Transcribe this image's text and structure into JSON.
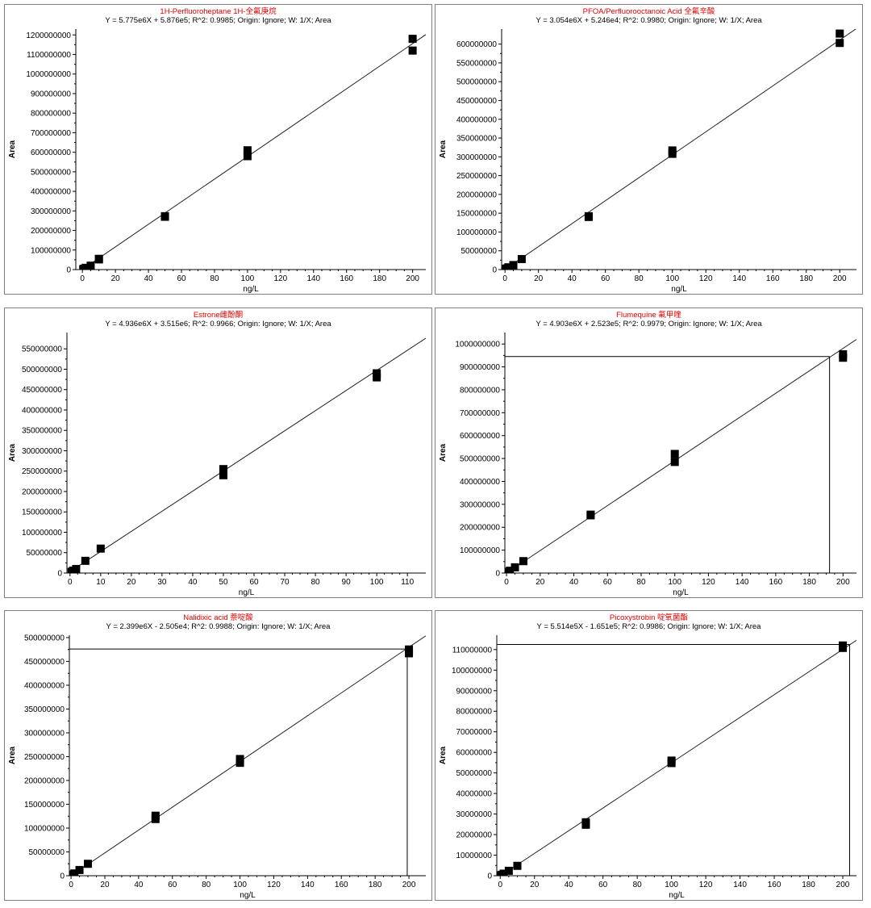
{
  "chart_data": [
    {
      "type": "scatter",
      "title": "1H-Perfluoroheptane 1H-全氟庚烷",
      "equation": "Y = 5.775e6X + 5.876e5; R^2: 0.9985; Origin: Ignore; W: 1/X; Area",
      "xlabel": "ng/L",
      "ylabel": "Area",
      "xlim": [
        -4,
        208
      ],
      "ylim": [
        0,
        1230000000
      ],
      "xticks": [
        0,
        20,
        40,
        60,
        80,
        100,
        120,
        140,
        160,
        180,
        200
      ],
      "yticks": [
        0,
        100000000,
        200000000,
        300000000,
        400000000,
        500000000,
        600000000,
        700000000,
        800000000,
        900000000,
        1000000000,
        1100000000,
        1200000000
      ],
      "yticklabels": [
        "0",
        "100000000",
        "200000000",
        "300000000",
        "400000000",
        "500000000",
        "600000000",
        "700000000",
        "800000000",
        "900000000",
        "1000000000",
        "1100000000",
        "1200000000"
      ],
      "fit": {
        "slope": 5775000,
        "intercept": 587600
      },
      "points": [
        [
          0.5,
          2000000
        ],
        [
          1,
          4500000
        ],
        [
          2,
          9000000
        ],
        [
          5,
          20000000
        ],
        [
          10,
          55000000
        ],
        [
          10,
          52000000
        ],
        [
          50,
          273000000
        ],
        [
          50,
          270000000
        ],
        [
          100,
          610000000
        ],
        [
          100,
          580000000
        ],
        [
          200,
          1180000000
        ],
        [
          200,
          1120000000
        ]
      ]
    },
    {
      "type": "scatter",
      "title": "PFOA/Perfluorooctanoic Acid 全氟辛酸",
      "equation": "Y = 3.054e6X + 5.246e4; R^2: 0.9980; Origin: Ignore; W: 1/X; Area",
      "xlabel": "ng/L",
      "ylabel": "Area",
      "xlim": [
        -2,
        210
      ],
      "ylim": [
        0,
        640000000
      ],
      "xticks": [
        0,
        20,
        40,
        60,
        80,
        100,
        120,
        140,
        160,
        180,
        200
      ],
      "yticks": [
        0,
        50000000,
        100000000,
        150000000,
        200000000,
        250000000,
        300000000,
        350000000,
        400000000,
        450000000,
        500000000,
        550000000,
        600000000
      ],
      "yticklabels": [
        "0",
        "50000000",
        "100000000",
        "150000000",
        "200000000",
        "250000000",
        "300000000",
        "350000000",
        "400000000",
        "450000000",
        "500000000",
        "550000000",
        "600000000"
      ],
      "fit": {
        "slope": 3054000,
        "intercept": 52460
      },
      "points": [
        [
          0.5,
          1500000
        ],
        [
          1,
          3000000
        ],
        [
          2,
          6000000
        ],
        [
          5,
          12000000
        ],
        [
          10,
          28000000
        ],
        [
          50,
          142000000
        ],
        [
          50,
          140000000
        ],
        [
          100,
          317000000
        ],
        [
          100,
          308000000
        ],
        [
          200,
          628000000
        ],
        [
          200,
          603000000
        ]
      ]
    },
    {
      "type": "scatter",
      "title": "Estrone雌酚酮",
      "equation": "Y = 4.936e6X + 3.515e6; R^2: 0.9966; Origin: Ignore; W: 1/X; Area",
      "xlabel": "ng/L",
      "ylabel": "Area",
      "xlim": [
        -1,
        116
      ],
      "ylim": [
        0,
        590000000
      ],
      "xticks": [
        0,
        10,
        20,
        30,
        40,
        50,
        60,
        70,
        80,
        90,
        100,
        110
      ],
      "yticks": [
        0,
        50000000,
        100000000,
        150000000,
        200000000,
        250000000,
        300000000,
        350000000,
        400000000,
        450000000,
        500000000,
        550000000
      ],
      "yticklabels": [
        "0",
        "50000000",
        "100000000",
        "150000000",
        "200000000",
        "250000000",
        "300000000",
        "350000000",
        "400000000",
        "450000000",
        "500000000",
        "550000000"
      ],
      "fit": {
        "slope": 4936000,
        "intercept": 3515000
      },
      "points": [
        [
          0.5,
          3000000
        ],
        [
          1,
          6000000
        ],
        [
          2,
          10000000
        ],
        [
          5,
          30000000
        ],
        [
          10,
          60000000
        ],
        [
          50,
          255000000
        ],
        [
          50,
          240000000
        ],
        [
          100,
          490000000
        ],
        [
          100,
          480000000
        ]
      ]
    },
    {
      "type": "scatter",
      "title": "Flumequine 氟甲喹",
      "equation": "Y = 4.903e6X + 2.523e5; R^2: 0.9979; Origin: Ignore; W: 1/X; Area",
      "xlabel": "ng/L",
      "ylabel": "Area",
      "xlim": [
        -1,
        208
      ],
      "ylim": [
        0,
        1050000000
      ],
      "xticks": [
        0,
        20,
        40,
        60,
        80,
        100,
        120,
        140,
        160,
        180,
        200
      ],
      "yticks": [
        0,
        100000000,
        200000000,
        300000000,
        400000000,
        500000000,
        600000000,
        700000000,
        800000000,
        900000000,
        1000000000
      ],
      "yticklabels": [
        "0",
        "100000000",
        "200000000",
        "300000000",
        "400000000",
        "500000000",
        "600000000",
        "700000000",
        "800000000",
        "900000000",
        "1000000000"
      ],
      "fit": {
        "slope": 4903000,
        "intercept": 252300
      },
      "points": [
        [
          0.5,
          2500000
        ],
        [
          1,
          5000000
        ],
        [
          2,
          10000000
        ],
        [
          5,
          25000000
        ],
        [
          10,
          52000000
        ],
        [
          50,
          255000000
        ],
        [
          50,
          252000000
        ],
        [
          100,
          520000000
        ],
        [
          100,
          485000000
        ],
        [
          200,
          955000000
        ],
        [
          200,
          940000000
        ]
      ],
      "crosshair": {
        "x": 192,
        "y": 945000000
      }
    },
    {
      "type": "scatter",
      "title": "Nalidixic acid 萘啶酸",
      "equation": "Y = 2.399e6X - 2.505e4; R^2: 0.9988; Origin: Ignore; W: 1/X; Area",
      "xlabel": "ng/L",
      "ylabel": "Area",
      "xlim": [
        -1,
        210
      ],
      "ylim": [
        0,
        505000000
      ],
      "xticks": [
        0,
        20,
        40,
        60,
        80,
        100,
        120,
        140,
        160,
        180,
        200
      ],
      "yticks": [
        0,
        50000000,
        100000000,
        150000000,
        200000000,
        250000000,
        300000000,
        350000000,
        400000000,
        450000000,
        500000000
      ],
      "yticklabels": [
        "0",
        "50000000",
        "100000000",
        "150000000",
        "200000000",
        "250000000",
        "300000000",
        "350000000",
        "400000000",
        "450000000",
        "500000000"
      ],
      "fit": {
        "slope": 2399000,
        "intercept": -25050
      },
      "points": [
        [
          0.5,
          1000000
        ],
        [
          1,
          2500000
        ],
        [
          2,
          4800000
        ],
        [
          5,
          12000000
        ],
        [
          10,
          25000000
        ],
        [
          50,
          126000000
        ],
        [
          50,
          119000000
        ],
        [
          100,
          245000000
        ],
        [
          100,
          237000000
        ],
        [
          200,
          475000000
        ],
        [
          200,
          467000000
        ]
      ],
      "crosshair": {
        "x": 199,
        "y": 476000000
      }
    },
    {
      "type": "scatter",
      "title": "Picoxystrobin 啶氧菌酯",
      "equation": "Y = 5.514e5X - 1.651e5; R^2: 0.9986; Origin: Ignore; W: 1/X; Area",
      "xlabel": "ng/L",
      "ylabel": "Area",
      "xlim": [
        -2,
        208
      ],
      "ylim": [
        0,
        117000000
      ],
      "xticks": [
        0,
        20,
        40,
        60,
        80,
        100,
        120,
        140,
        160,
        180,
        200
      ],
      "yticks": [
        0,
        10000000,
        20000000,
        30000000,
        40000000,
        50000000,
        60000000,
        70000000,
        80000000,
        90000000,
        100000000,
        110000000
      ],
      "yticklabels": [
        "0",
        "10000000",
        "20000000",
        "30000000",
        "40000000",
        "50000000",
        "60000000",
        "70000000",
        "80000000",
        "90000000",
        "100000000",
        "110000000"
      ],
      "fit": {
        "slope": 551400,
        "intercept": -165100
      },
      "points": [
        [
          0.5,
          200000
        ],
        [
          1,
          450000
        ],
        [
          2,
          1000000
        ],
        [
          5,
          2400000
        ],
        [
          10,
          4800000
        ],
        [
          50,
          26000000
        ],
        [
          50,
          24800000
        ],
        [
          100,
          56000000
        ],
        [
          100,
          54800000
        ],
        [
          200,
          112000000
        ],
        [
          200,
          110800000
        ]
      ],
      "crosshair": {
        "x": 204,
        "y": 112500000
      }
    }
  ]
}
